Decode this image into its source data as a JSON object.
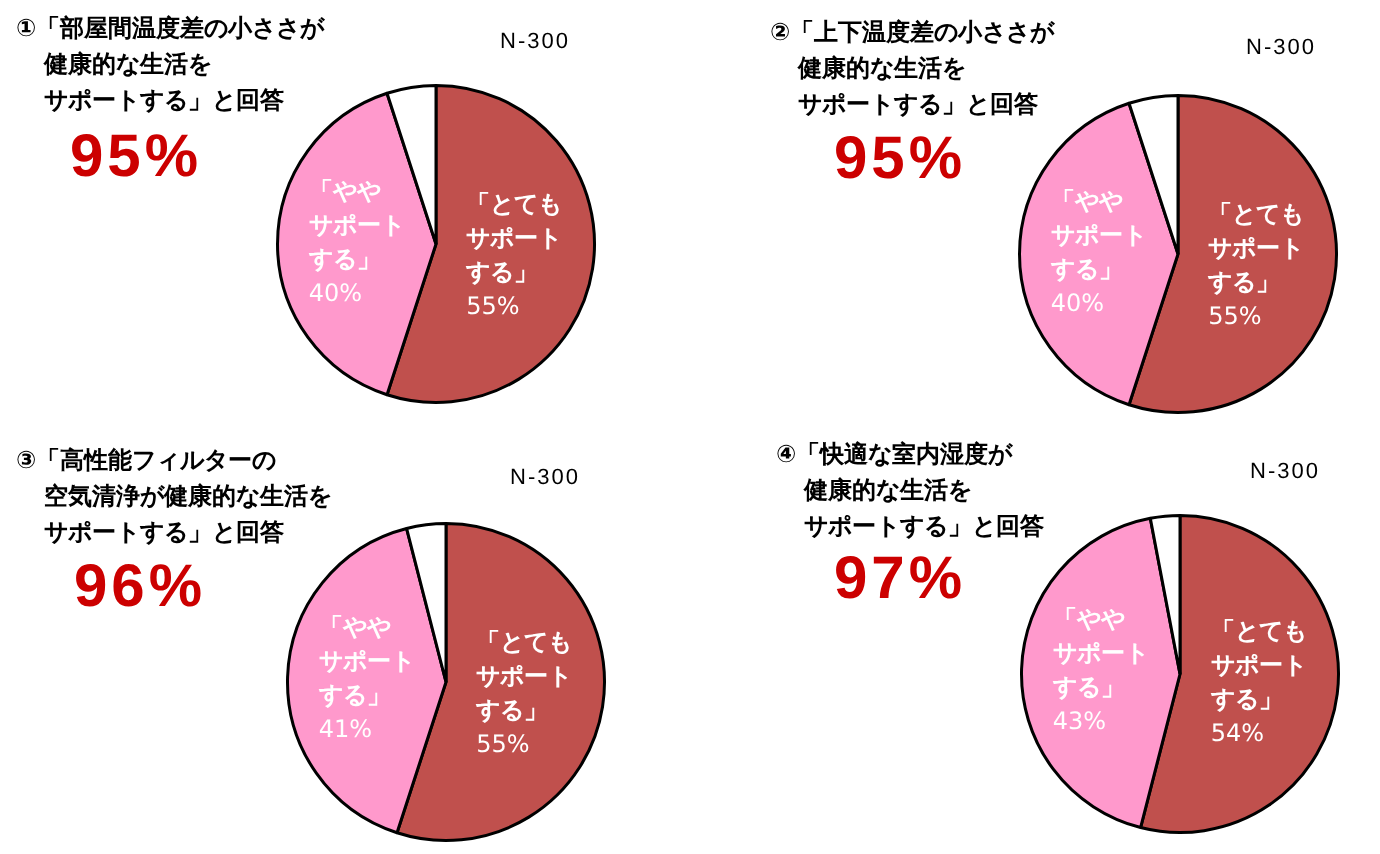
{
  "chart_data": [
    {
      "type": "pie",
      "title": "①「部屋間温度差の小ささが健康的な生活をサポートする」と回答",
      "subtitle": "95%",
      "annotations": [
        "N-300"
      ],
      "categories": [
        "「とてもサポートする」",
        "「ややサポートする」",
        null
      ],
      "values": [
        55,
        40,
        5
      ],
      "colors": [
        "#c0504d",
        "#ff99cc",
        "#ffffff"
      ],
      "value_labels": [
        "55%",
        "40%",
        null
      ]
    },
    {
      "type": "pie",
      "title": "②「上下温度差の小ささが健康的な生活をサポートする」と回答",
      "subtitle": "95%",
      "annotations": [
        "N-300"
      ],
      "categories": [
        "「とてもサポートする」",
        "「ややサポートする」",
        null
      ],
      "values": [
        55,
        40,
        5
      ],
      "colors": [
        "#c0504d",
        "#ff99cc",
        "#ffffff"
      ],
      "value_labels": [
        "55%",
        "40%",
        null
      ]
    },
    {
      "type": "pie",
      "title": "③「高性能フィルターの空気清浄が健康的な生活をサポートする」と回答",
      "subtitle": "96%",
      "annotations": [
        "N-300"
      ],
      "categories": [
        "「とてもサポートする」",
        "「ややサポートする」",
        null
      ],
      "values": [
        55,
        41,
        4
      ],
      "colors": [
        "#c0504d",
        "#ff99cc",
        "#ffffff"
      ],
      "value_labels": [
        "55%",
        "41%",
        null
      ]
    },
    {
      "type": "pie",
      "title": "④「快適な室内湿度が健康的な生活をサポートする」と回答",
      "subtitle": "97%",
      "annotations": [
        "N-300"
      ],
      "categories": [
        "「とてもサポートする」",
        "「ややサポートする」",
        null
      ],
      "values": [
        54,
        43,
        3
      ],
      "colors": [
        "#c0504d",
        "#ff99cc",
        "#ffffff"
      ],
      "value_labels": [
        "54%",
        "43%",
        null
      ]
    }
  ]
}
